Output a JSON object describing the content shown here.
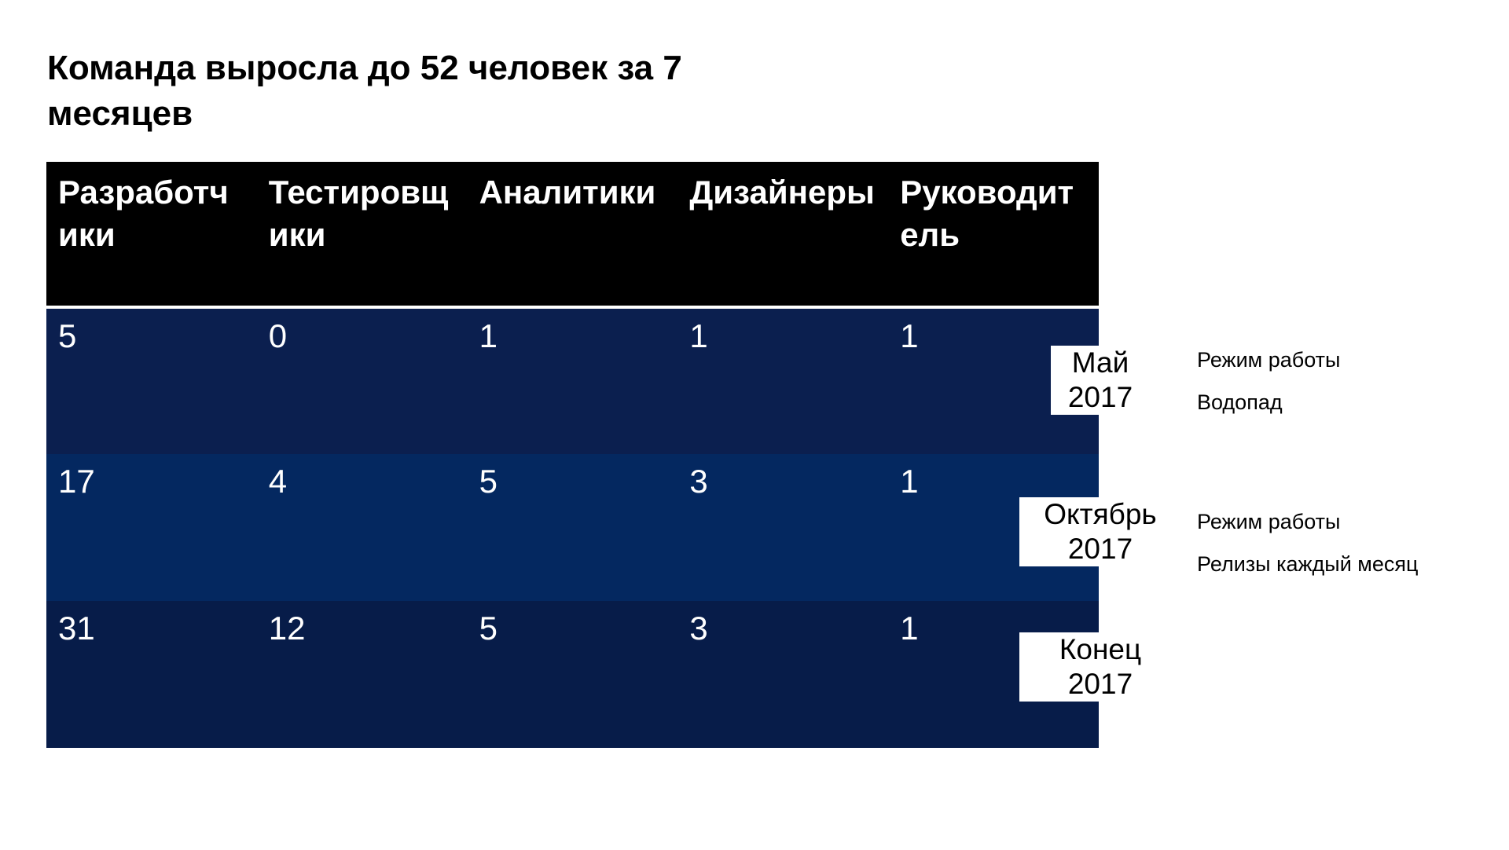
{
  "slide": {
    "title": "Команда выросла до 52 человек за 7 месяцев"
  },
  "table": {
    "headers": [
      "Разработчики",
      "Тестировщики",
      "Аналитики",
      "Дизайнеры",
      "Руководитель"
    ],
    "rows": [
      [
        "5",
        "0",
        "1",
        "1",
        "1"
      ],
      [
        "17",
        "4",
        "5",
        "3",
        "1"
      ],
      [
        "31",
        "12",
        "5",
        "3",
        "1"
      ]
    ],
    "row_colors": [
      "#0b1f4f",
      "#042860",
      "#071c49"
    ],
    "header_color": "#000000"
  },
  "periods": [
    {
      "label": "Май\n2017",
      "notes": [
        "Режим работы",
        "Водопад"
      ]
    },
    {
      "label": "Октябрь\n2017",
      "notes": [
        "Режим работы",
        "Релизы каждый месяц"
      ]
    },
    {
      "label": "Конец\n2017",
      "notes": []
    }
  ]
}
